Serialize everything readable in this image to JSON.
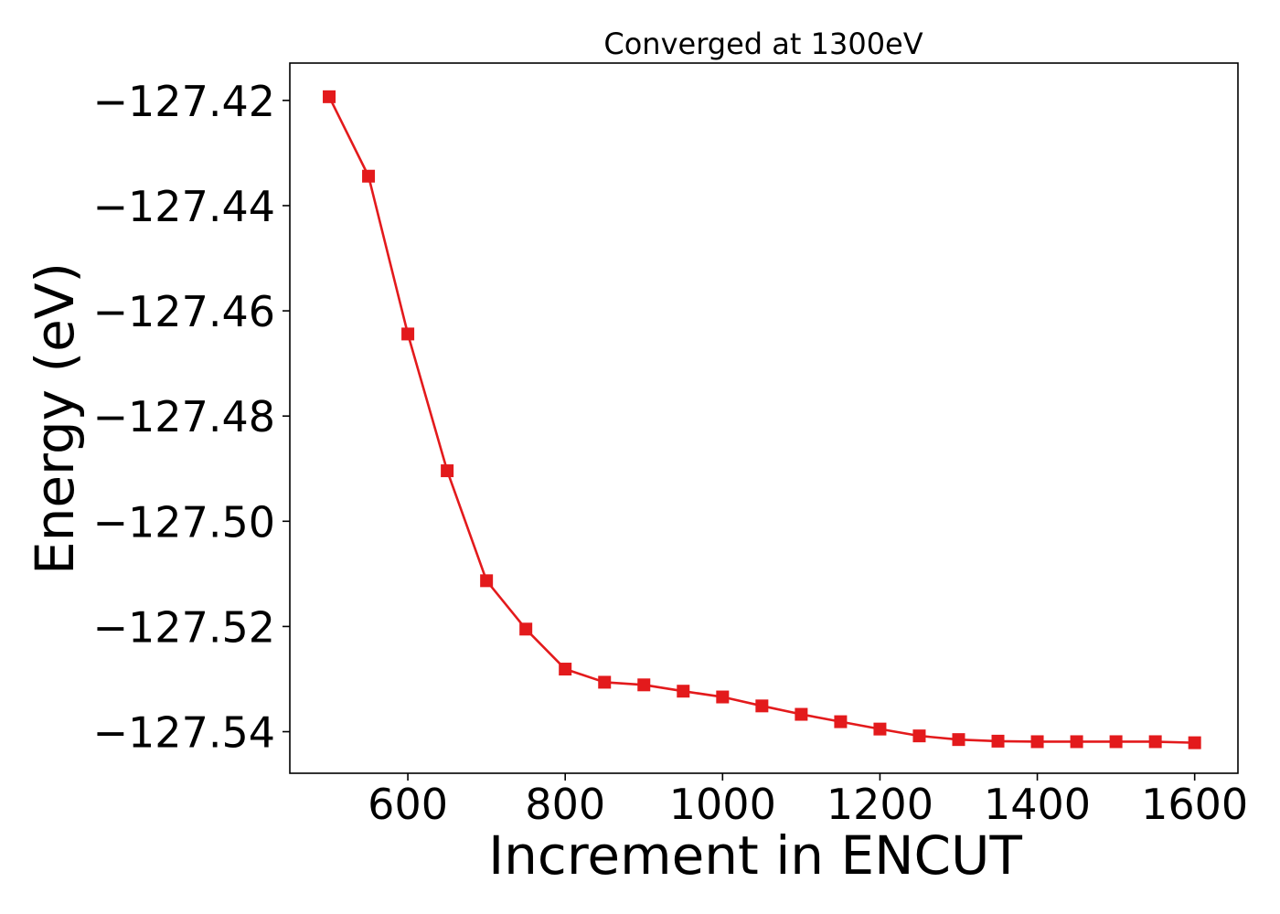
{
  "chart_data": {
    "type": "line",
    "title": "Converged at 1300eV",
    "xlabel": "Increment in ENCUT",
    "ylabel": "Energy (eV)",
    "xlim": [
      450,
      1655
    ],
    "ylim": [
      -127.5479,
      -127.4129
    ],
    "x_ticks": [
      600,
      800,
      1000,
      1200,
      1400,
      1600
    ],
    "x_tick_labels": [
      "600",
      "800",
      "1000",
      "1200",
      "1400",
      "1600"
    ],
    "y_ticks": [
      -127.42,
      -127.44,
      -127.46,
      -127.48,
      -127.5,
      -127.52,
      -127.54
    ],
    "y_tick_labels": [
      "−127.42",
      "−127.44",
      "−127.46",
      "−127.48",
      "−127.50",
      "−127.52",
      "−127.54"
    ],
    "grid": false,
    "marker": "square",
    "colors": {
      "series": "#e31a1c"
    },
    "series": [
      {
        "x": [
          500,
          550,
          600,
          650,
          700,
          750,
          800,
          850,
          900,
          950,
          1000,
          1050,
          1100,
          1150,
          1200,
          1250,
          1300,
          1350,
          1400,
          1450,
          1500,
          1550,
          1600
        ],
        "y": [
          -127.4193,
          -127.4344,
          -127.4644,
          -127.4904,
          -127.5113,
          -127.5205,
          -127.5281,
          -127.5306,
          -127.5311,
          -127.5323,
          -127.5334,
          -127.5351,
          -127.5367,
          -127.5381,
          -127.5395,
          -127.5408,
          -127.5415,
          -127.5418,
          -127.5419,
          -127.5419,
          -127.5419,
          -127.5419,
          -127.5421
        ]
      }
    ]
  }
}
